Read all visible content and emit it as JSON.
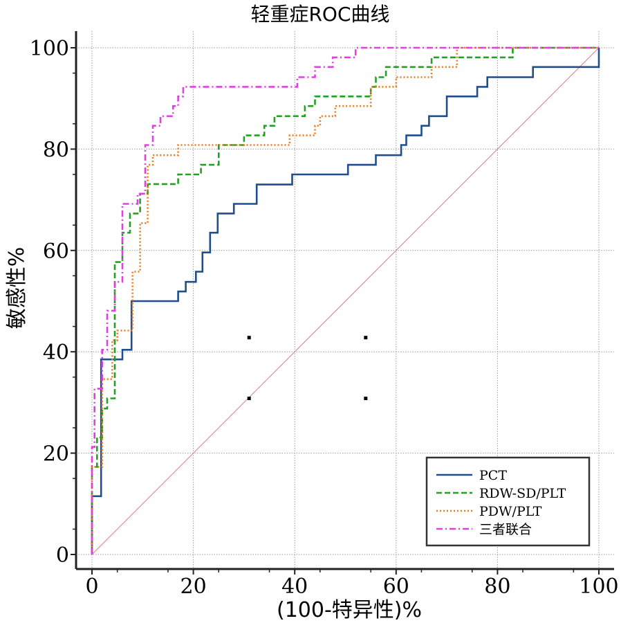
{
  "chart_data": {
    "type": "line",
    "title": "轻重症ROC曲线",
    "xlabel": "(100-特异性)%",
    "ylabel": "敏感性%",
    "xlim": [
      0,
      100
    ],
    "ylim": [
      0,
      100
    ],
    "xticks": [
      "0",
      "20",
      "40",
      "60",
      "80",
      "100"
    ],
    "yticks": [
      "0",
      "20",
      "40",
      "60",
      "80",
      "100"
    ],
    "grid": true,
    "legend_position": "bottom-right",
    "reference_line": {
      "x": [
        0,
        100
      ],
      "y": [
        0,
        100
      ],
      "color": "#d08080"
    },
    "series": [
      {
        "name": "PCT",
        "color": "#1f4e8c",
        "dash": "solid",
        "points": [
          [
            0,
            0
          ],
          [
            0,
            11.5
          ],
          [
            1.8,
            11.5
          ],
          [
            1.8,
            38.5
          ],
          [
            6,
            38.5
          ],
          [
            6,
            40.4
          ],
          [
            7.8,
            40.4
          ],
          [
            7.8,
            50
          ],
          [
            17,
            50
          ],
          [
            17,
            51.9
          ],
          [
            18.5,
            51.9
          ],
          [
            18.5,
            53.8
          ],
          [
            20.5,
            53.8
          ],
          [
            20.5,
            55.8
          ],
          [
            21.8,
            55.8
          ],
          [
            21.8,
            59.6
          ],
          [
            23.3,
            59.6
          ],
          [
            23.3,
            63.5
          ],
          [
            24.8,
            63.5
          ],
          [
            24.8,
            67.3
          ],
          [
            28,
            67.3
          ],
          [
            28,
            69.2
          ],
          [
            32.5,
            69.2
          ],
          [
            32.5,
            73
          ],
          [
            39.5,
            73
          ],
          [
            39.5,
            75
          ],
          [
            50.5,
            75
          ],
          [
            50.5,
            76.9
          ],
          [
            56,
            76.9
          ],
          [
            56,
            78.8
          ],
          [
            61,
            78.8
          ],
          [
            61,
            80.8
          ],
          [
            62,
            80.8
          ],
          [
            62,
            82.7
          ],
          [
            65,
            82.7
          ],
          [
            65,
            84.6
          ],
          [
            66.5,
            84.6
          ],
          [
            66.5,
            86.5
          ],
          [
            70,
            86.5
          ],
          [
            70,
            90.4
          ],
          [
            76,
            90.4
          ],
          [
            76,
            92.3
          ],
          [
            78,
            92.3
          ],
          [
            78,
            94.2
          ],
          [
            87,
            94.2
          ],
          [
            87,
            96.2
          ],
          [
            100,
            96.2
          ],
          [
            100,
            100
          ]
        ]
      },
      {
        "name": "RDW-SD/PLT",
        "color": "#22a022",
        "dash": "dashed",
        "points": [
          [
            0,
            0
          ],
          [
            0,
            17.3
          ],
          [
            1,
            17.3
          ],
          [
            1,
            23.1
          ],
          [
            2,
            23.1
          ],
          [
            2,
            28.8
          ],
          [
            3,
            28.8
          ],
          [
            3,
            30.8
          ],
          [
            4.5,
            30.8
          ],
          [
            4.5,
            57.7
          ],
          [
            6,
            57.7
          ],
          [
            6,
            63.5
          ],
          [
            7.5,
            63.5
          ],
          [
            7.5,
            67.3
          ],
          [
            9.5,
            67.3
          ],
          [
            9.5,
            71.2
          ],
          [
            11,
            71.2
          ],
          [
            11,
            73.1
          ],
          [
            17,
            73.1
          ],
          [
            17,
            75
          ],
          [
            21.5,
            75
          ],
          [
            21.5,
            76.9
          ],
          [
            25,
            76.9
          ],
          [
            25,
            80.8
          ],
          [
            30,
            80.8
          ],
          [
            30,
            82.7
          ],
          [
            34,
            82.7
          ],
          [
            34,
            84.6
          ],
          [
            36,
            84.6
          ],
          [
            36,
            86.5
          ],
          [
            42,
            86.5
          ],
          [
            42,
            88.5
          ],
          [
            44,
            88.5
          ],
          [
            44,
            90.4
          ],
          [
            55,
            90.4
          ],
          [
            55,
            92.3
          ],
          [
            56,
            92.3
          ],
          [
            56,
            94.2
          ],
          [
            58,
            94.2
          ],
          [
            58,
            96.2
          ],
          [
            67,
            96.2
          ],
          [
            67,
            98.1
          ],
          [
            83,
            98.1
          ],
          [
            83,
            100
          ],
          [
            100,
            100
          ]
        ]
      },
      {
        "name": "PDW/PLT",
        "color": "#e87a20",
        "dash": "dotted",
        "points": [
          [
            0,
            0
          ],
          [
            0,
            17.3
          ],
          [
            2,
            17.3
          ],
          [
            2,
            34.6
          ],
          [
            4,
            34.6
          ],
          [
            4,
            42.3
          ],
          [
            5,
            42.3
          ],
          [
            5,
            44.2
          ],
          [
            8,
            44.2
          ],
          [
            8,
            55.8
          ],
          [
            9.5,
            55.8
          ],
          [
            9.5,
            65.4
          ],
          [
            11,
            65.4
          ],
          [
            11,
            76.9
          ],
          [
            12,
            76.9
          ],
          [
            12,
            78.8
          ],
          [
            17,
            78.8
          ],
          [
            17,
            80.8
          ],
          [
            39,
            80.8
          ],
          [
            39,
            82.7
          ],
          [
            44,
            82.7
          ],
          [
            44,
            84.6
          ],
          [
            45,
            84.6
          ],
          [
            45,
            86.5
          ],
          [
            48,
            86.5
          ],
          [
            48,
            88.5
          ],
          [
            55,
            88.5
          ],
          [
            55,
            92.3
          ],
          [
            60,
            92.3
          ],
          [
            60,
            94.2
          ],
          [
            67,
            94.2
          ],
          [
            67,
            96.2
          ],
          [
            72,
            96.2
          ],
          [
            72,
            100
          ],
          [
            100,
            100
          ]
        ]
      },
      {
        "name": "三者联合",
        "color": "#e040e0",
        "dash": "dashdot",
        "points": [
          [
            0,
            0
          ],
          [
            0,
            21.2
          ],
          [
            0.5,
            21.2
          ],
          [
            0.5,
            32.7
          ],
          [
            2,
            32.7
          ],
          [
            2,
            40.4
          ],
          [
            3,
            40.4
          ],
          [
            3,
            48.1
          ],
          [
            4.5,
            48.1
          ],
          [
            4.5,
            53.8
          ],
          [
            6,
            53.8
          ],
          [
            6,
            69.2
          ],
          [
            9,
            69.2
          ],
          [
            9,
            71.2
          ],
          [
            10.5,
            71.2
          ],
          [
            10.5,
            80.8
          ],
          [
            12,
            80.8
          ],
          [
            12,
            84.6
          ],
          [
            13.5,
            84.6
          ],
          [
            13.5,
            86.5
          ],
          [
            16,
            86.5
          ],
          [
            16,
            88.5
          ],
          [
            17,
            88.5
          ],
          [
            17,
            90.4
          ],
          [
            18,
            90.4
          ],
          [
            18,
            92.3
          ],
          [
            40.5,
            92.3
          ],
          [
            40.5,
            94.2
          ],
          [
            44,
            94.2
          ],
          [
            44,
            96.2
          ],
          [
            47.5,
            96.2
          ],
          [
            47.5,
            98.1
          ],
          [
            52,
            98.1
          ],
          [
            52,
            100
          ],
          [
            100,
            100
          ]
        ]
      }
    ],
    "markers": [
      [
        31,
        30.8
      ],
      [
        54,
        30.8
      ],
      [
        31,
        42.8
      ],
      [
        54,
        42.8
      ]
    ]
  }
}
